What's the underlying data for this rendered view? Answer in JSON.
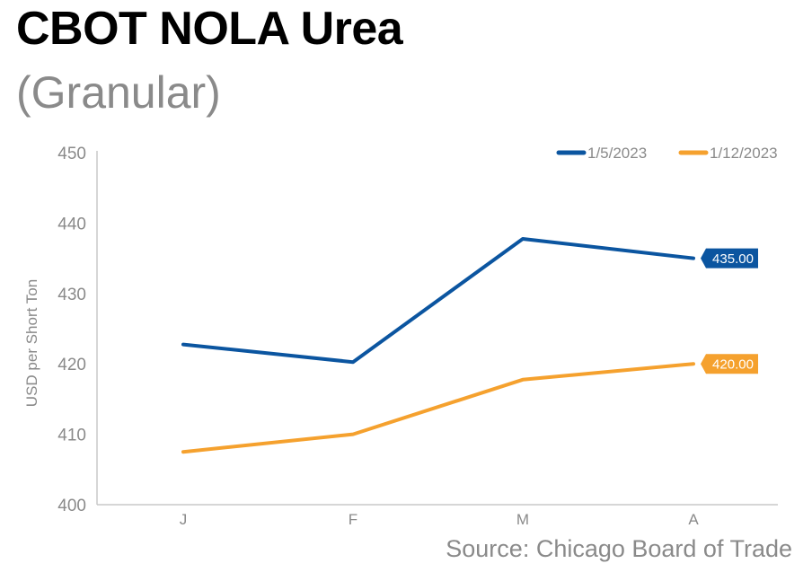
{
  "header": {
    "title": "CBOT NOLA Urea",
    "subtitle": "(Granular)",
    "source": "Source: Chicago Board of Trade"
  },
  "chart_data": {
    "type": "line",
    "title": "CBOT NOLA Urea",
    "subtitle": "(Granular)",
    "xlabel": "",
    "ylabel": "USD per Short Ton",
    "categories": [
      "J",
      "F",
      "M",
      "A"
    ],
    "ylim": [
      400,
      450
    ],
    "yticks": [
      400,
      410,
      420,
      430,
      440,
      450
    ],
    "grid": false,
    "legend_position": "top-right",
    "series": [
      {
        "name": "1/5/2023",
        "color": "#0b55a0",
        "values": [
          422.75,
          420.25,
          437.75,
          435.0
        ],
        "end_label": "435.00"
      },
      {
        "name": "1/12/2023",
        "color": "#f5a12e",
        "values": [
          407.5,
          410.0,
          417.75,
          420.0
        ],
        "end_label": "420.00"
      }
    ]
  }
}
